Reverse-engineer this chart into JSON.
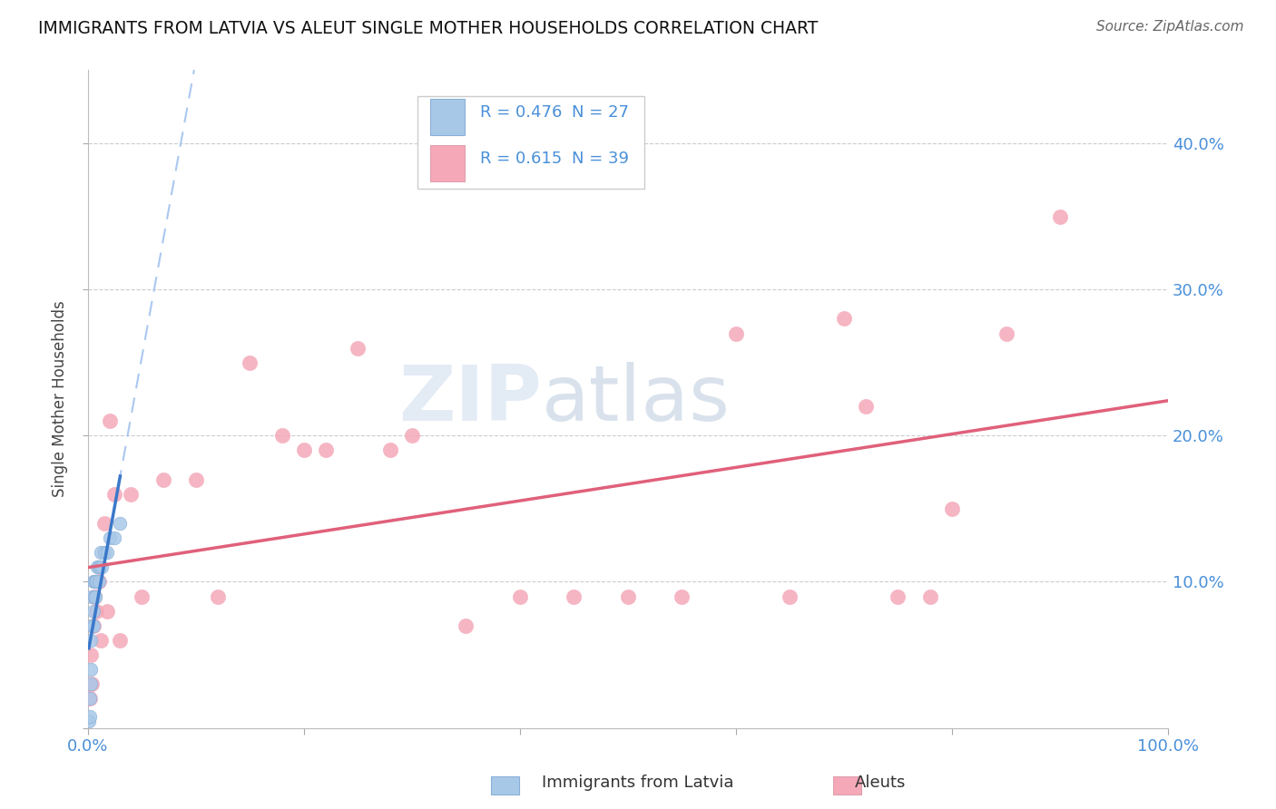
{
  "title": "IMMIGRANTS FROM LATVIA VS ALEUT SINGLE MOTHER HOUSEHOLDS CORRELATION CHART",
  "source": "Source: ZipAtlas.com",
  "ylabel": "Single Mother Households",
  "r_latvia": 0.476,
  "n_latvia": 27,
  "r_aleut": 0.615,
  "n_aleut": 39,
  "latvia_color": "#a8c8e8",
  "aleut_color": "#f4a8b8",
  "latvia_line_color": "#3a78c9",
  "aleut_line_color": "#e0607a",
  "dashed_line_color": "#aac8f0",
  "xlim": [
    0.0,
    1.0
  ],
  "ylim": [
    0.0,
    0.45
  ],
  "yticks": [
    0.0,
    0.1,
    0.2,
    0.3,
    0.4
  ],
  "xticks": [
    0.0,
    0.2,
    0.4,
    0.6,
    0.8,
    1.0
  ],
  "right_ytick_labels": [
    "",
    "10.0%",
    "20.0%",
    "30.0%",
    "40.0%"
  ],
  "xtick_labels": [
    "0.0%",
    "",
    "",
    "",
    "",
    "100.0%"
  ],
  "watermark_zip": "ZIP",
  "watermark_atlas": "atlas",
  "background_color": "#ffffff",
  "grid_color": "#cccccc",
  "latvia_x": [
    0.001,
    0.002,
    0.002,
    0.003,
    0.003,
    0.003,
    0.004,
    0.004,
    0.005,
    0.005,
    0.005,
    0.006,
    0.006,
    0.007,
    0.007,
    0.008,
    0.009,
    0.01,
    0.01,
    0.011,
    0.012,
    0.013,
    0.015,
    0.018,
    0.02,
    0.025,
    0.03
  ],
  "latvia_y": [
    0.005,
    0.008,
    0.02,
    0.03,
    0.04,
    0.06,
    0.07,
    0.09,
    0.07,
    0.08,
    0.1,
    0.09,
    0.1,
    0.09,
    0.1,
    0.1,
    0.11,
    0.1,
    0.11,
    0.11,
    0.12,
    0.11,
    0.12,
    0.12,
    0.13,
    0.13,
    0.14
  ],
  "aleut_x": [
    0.002,
    0.003,
    0.004,
    0.005,
    0.006,
    0.008,
    0.01,
    0.012,
    0.015,
    0.018,
    0.02,
    0.025,
    0.03,
    0.04,
    0.05,
    0.07,
    0.1,
    0.12,
    0.15,
    0.18,
    0.2,
    0.22,
    0.25,
    0.28,
    0.3,
    0.35,
    0.4,
    0.45,
    0.5,
    0.55,
    0.6,
    0.65,
    0.7,
    0.72,
    0.75,
    0.78,
    0.8,
    0.85,
    0.9
  ],
  "aleut_y": [
    0.02,
    0.05,
    0.03,
    0.07,
    0.09,
    0.08,
    0.1,
    0.06,
    0.14,
    0.08,
    0.21,
    0.16,
    0.06,
    0.16,
    0.09,
    0.17,
    0.17,
    0.09,
    0.25,
    0.2,
    0.19,
    0.19,
    0.26,
    0.19,
    0.2,
    0.07,
    0.09,
    0.09,
    0.09,
    0.09,
    0.27,
    0.09,
    0.28,
    0.22,
    0.09,
    0.09,
    0.15,
    0.27,
    0.35
  ]
}
